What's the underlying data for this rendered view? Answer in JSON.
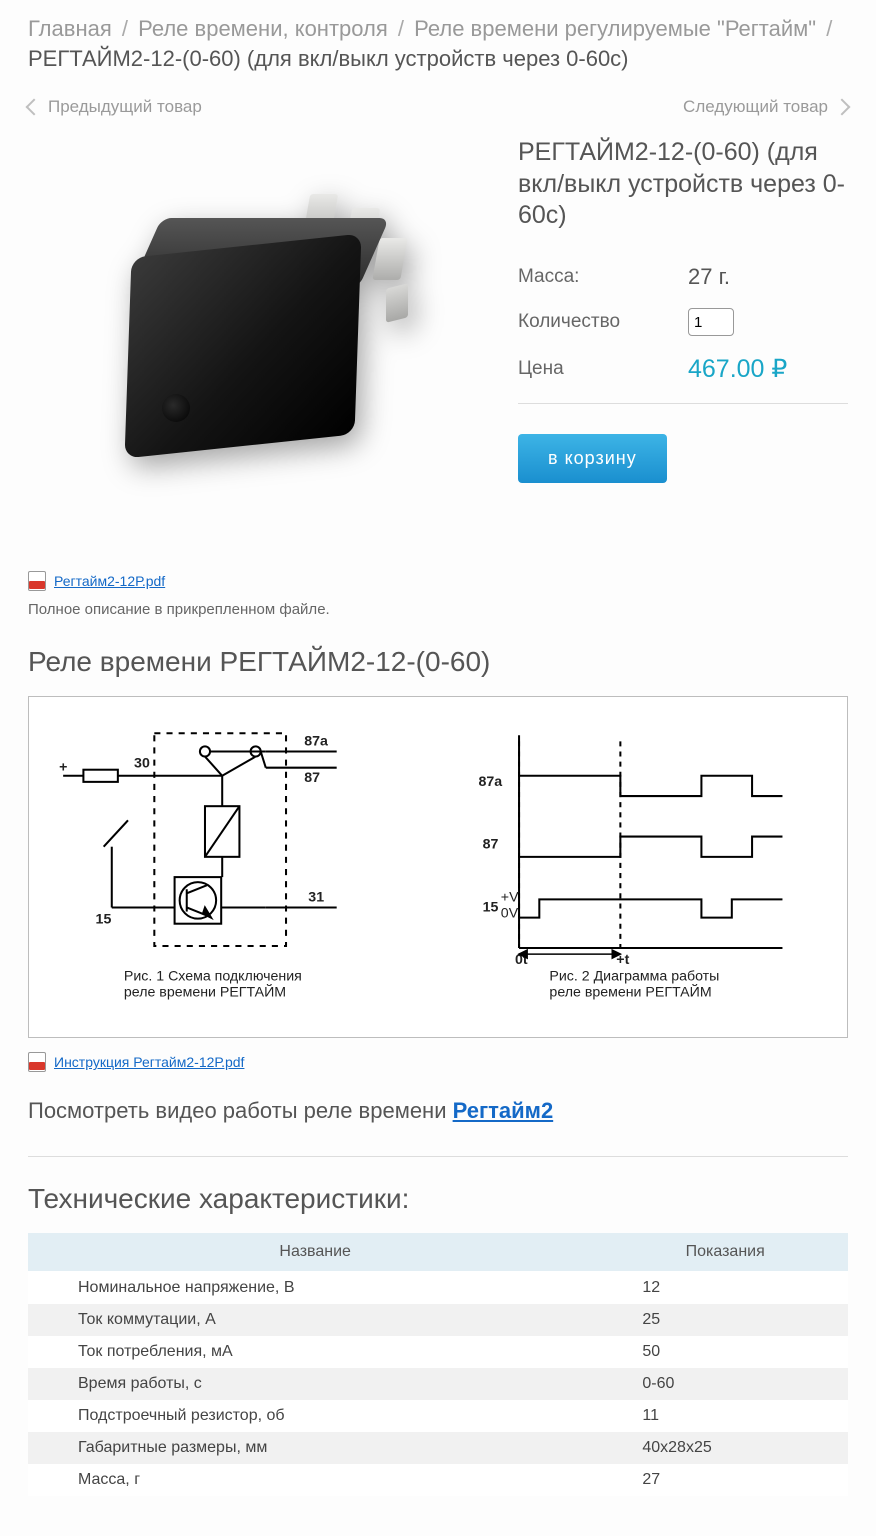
{
  "breadcrumb": {
    "items": [
      {
        "label": "Главная"
      },
      {
        "label": "Реле времени, контроля"
      },
      {
        "label": "Реле времени регулируемые \"Регтайм\""
      }
    ],
    "current": "РЕГТАЙМ2-12-(0-60) (для вкл/выкл устройств через 0-60с)"
  },
  "nav": {
    "prev": "Предыдущий товар",
    "next": "Следующий товар"
  },
  "product": {
    "title": "РЕГТАЙМ2-12-(0-60) (для вкл/выкл устройств через 0-60с)",
    "mass_label": "Масса:",
    "mass_value": "27 г.",
    "qty_label": "Количество",
    "qty_value": "1",
    "price_label": "Цена",
    "price_value": "467.00 ₽",
    "cart_button": "в корзину"
  },
  "attachment1": {
    "filename": "Регтайм2-12Р.pdf"
  },
  "attachment2": {
    "filename": "Инструкция Регтайм2-12Р.pdf"
  },
  "desc_note": "Полное описание в прикрепленном файле.",
  "section_title": "Реле времени РЕГТАЙМ2-12-(0-60)",
  "diagram": {
    "left": {
      "labels": {
        "plus": "+",
        "n30": "30",
        "n15": "15",
        "n87a": "87a",
        "n87": "87",
        "n31": "31"
      },
      "caption1": "Рис. 1 Схема подключения",
      "caption2": "реле времени РЕГТАЙМ"
    },
    "right": {
      "labels": {
        "n87a": "87a",
        "n87": "87",
        "n15": "15",
        "vp": "+V",
        "v0": "0V",
        "t0": "0t",
        "tp": "+t"
      },
      "caption1": "Рис. 2 Диаграмма работы",
      "caption2": "реле времени РЕГТАЙМ"
    }
  },
  "video": {
    "prefix": "Посмотреть видео работы реле времени ",
    "link": "Регтайм2"
  },
  "specs": {
    "heading": "Технические характеристики:",
    "col_name": "Название",
    "col_value": "Показания",
    "rows": [
      {
        "name": "Номинальное напряжение, В",
        "value": "12"
      },
      {
        "name": "Ток коммутации, А",
        "value": "25"
      },
      {
        "name": "Ток потребления, мA",
        "value": "50"
      },
      {
        "name": "Время работы, с",
        "value": "0-60"
      },
      {
        "name": "Подстроечный резистор, об",
        "value": "11"
      },
      {
        "name": "Габаритные размеры, мм",
        "value": "40х28х25"
      },
      {
        "name": "Масса, г",
        "value": "27"
      }
    ]
  },
  "colors": {
    "link": "#1469c7",
    "accent": "#19a6c7",
    "button_grad_top": "#3db4e6",
    "button_grad_bottom": "#1a8fcf",
    "spec_header_bg": "#e2eef4",
    "spec_row_alt": "#f1f1f1"
  }
}
